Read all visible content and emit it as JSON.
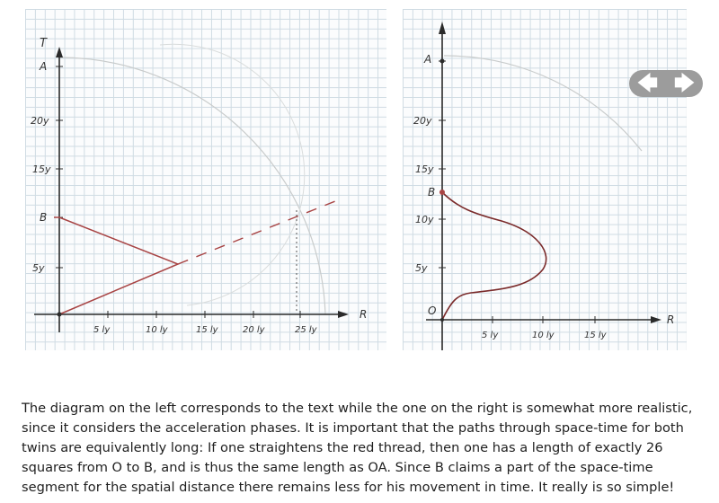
{
  "left_diagram": {
    "time_axis_label": "T",
    "space_axis_label": "R",
    "point_a": "A",
    "point_b": "B",
    "y_ticks": [
      "20y",
      "15y",
      "5y"
    ],
    "x_ticks": [
      "5 ly",
      "10 ly",
      "15 ly",
      "20 ly",
      "25 ly"
    ]
  },
  "right_diagram": {
    "space_axis_label": "R",
    "point_a": "A",
    "point_b": "B",
    "origin": "O",
    "y_ticks": [
      "20y",
      "15y",
      "10y",
      "5y"
    ],
    "x_ticks": [
      "5 ly",
      "10 ly",
      "15 ly"
    ]
  },
  "colors": {
    "path": "#a84444",
    "arc": "#c9cccc",
    "axis": "#2b2b2b"
  },
  "nav": {
    "prev_icon": "arrow-left-icon",
    "next_icon": "arrow-right-icon",
    "prev": "🡄",
    "next": "🡆"
  },
  "caption": "The diagram on the left corresponds to the text while the one on the right is somewhat more realistic, since it considers the acceleration phases. It is important that the paths through space-time for both twins are equivalently long: If one straightens the red thread, then one has a length of exactly 26 squares from O to B, and is thus the same length as OA. Since B claims a part of the space-time segment for the spatial distance there remains less for his movement in time. It really is so simple!"
}
